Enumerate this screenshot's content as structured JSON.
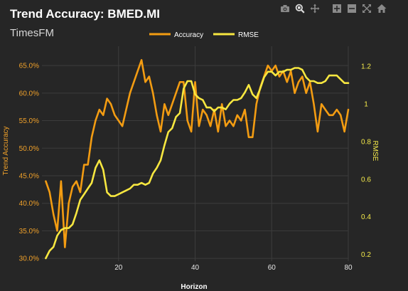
{
  "modebar": {
    "icons": [
      "camera-icon",
      "zoom-icon",
      "pan-icon",
      "zoom-in-icon",
      "zoom-out-icon",
      "autoscale-icon",
      "home-icon"
    ]
  },
  "chart_data": {
    "type": "line",
    "title": "Trend Accuracy: BMED.MI",
    "subtitle": "TimesFM",
    "xlabel": "Horizon",
    "ylabel_left": "Trend Accuracy",
    "ylabel_right": "RMSE",
    "x_ticks": [
      "20",
      "40",
      "60",
      "80"
    ],
    "y_left_ticks": [
      "30.0%",
      "35.0%",
      "40.0%",
      "45.0%",
      "50.0%",
      "55.0%",
      "60.0%",
      "65.0%"
    ],
    "y_right_ticks": [
      "0.2",
      "0.4",
      "0.6",
      "0.8",
      "1",
      "1.2"
    ],
    "xlim": [
      0,
      80
    ],
    "ylim_left": [
      0.295,
      0.685
    ],
    "ylim_right": [
      0.165,
      1.305
    ],
    "grid": true,
    "legend": {
      "placement": "top-center",
      "entries": [
        "Accuracy",
        "RMSE"
      ]
    },
    "colors": {
      "accuracy": "#f39c12",
      "rmse": "#f7e740",
      "background": "#262626",
      "grid": "#3c3c3c"
    },
    "series": [
      {
        "name": "Accuracy",
        "axis": "left",
        "x": [
          1,
          2,
          3,
          4,
          5,
          6,
          7,
          8,
          9,
          10,
          11,
          12,
          13,
          14,
          15,
          16,
          17,
          18,
          19,
          20,
          21,
          22,
          23,
          24,
          25,
          26,
          27,
          28,
          29,
          30,
          31,
          32,
          33,
          34,
          35,
          36,
          37,
          38,
          39,
          40,
          41,
          42,
          43,
          44,
          45,
          46,
          47,
          48,
          49,
          50,
          51,
          52,
          53,
          54,
          55,
          56,
          57,
          58,
          59,
          60,
          61,
          62,
          63,
          64,
          65,
          66,
          67,
          68,
          69,
          70,
          71,
          72,
          73,
          74,
          75,
          76,
          77,
          78,
          79,
          80
        ],
        "values": [
          0.44,
          0.42,
          0.38,
          0.35,
          0.44,
          0.32,
          0.4,
          0.43,
          0.44,
          0.42,
          0.47,
          0.47,
          0.52,
          0.55,
          0.57,
          0.56,
          0.59,
          0.58,
          0.56,
          0.55,
          0.54,
          0.57,
          0.6,
          0.62,
          0.64,
          0.66,
          0.62,
          0.63,
          0.6,
          0.56,
          0.53,
          0.58,
          0.56,
          0.58,
          0.6,
          0.62,
          0.62,
          0.55,
          0.53,
          0.62,
          0.54,
          0.57,
          0.56,
          0.54,
          0.57,
          0.53,
          0.58,
          0.54,
          0.55,
          0.54,
          0.56,
          0.55,
          0.57,
          0.52,
          0.52,
          0.58,
          0.61,
          0.63,
          0.65,
          0.64,
          0.65,
          0.63,
          0.64,
          0.62,
          0.64,
          0.6,
          0.62,
          0.63,
          0.6,
          0.62,
          0.58,
          0.53,
          0.58,
          0.57,
          0.56,
          0.56,
          0.57,
          0.56,
          0.53,
          0.57
        ]
      },
      {
        "name": "RMSE",
        "axis": "right",
        "x": [
          1,
          2,
          3,
          4,
          5,
          6,
          7,
          8,
          9,
          10,
          11,
          12,
          13,
          14,
          15,
          16,
          17,
          18,
          19,
          20,
          21,
          22,
          23,
          24,
          25,
          26,
          27,
          28,
          29,
          30,
          31,
          32,
          33,
          34,
          35,
          36,
          37,
          38,
          39,
          40,
          41,
          42,
          43,
          44,
          45,
          46,
          47,
          48,
          49,
          50,
          51,
          52,
          53,
          54,
          55,
          56,
          57,
          58,
          59,
          60,
          61,
          62,
          63,
          64,
          65,
          66,
          67,
          68,
          69,
          70,
          71,
          72,
          73,
          74,
          75,
          76,
          77,
          78,
          79,
          80
        ],
        "values": [
          0.18,
          0.22,
          0.24,
          0.3,
          0.33,
          0.34,
          0.34,
          0.36,
          0.42,
          0.49,
          0.52,
          0.55,
          0.58,
          0.66,
          0.7,
          0.65,
          0.53,
          0.51,
          0.51,
          0.52,
          0.53,
          0.54,
          0.55,
          0.57,
          0.57,
          0.58,
          0.57,
          0.58,
          0.63,
          0.66,
          0.7,
          0.78,
          0.85,
          0.87,
          0.93,
          0.95,
          1.08,
          1.12,
          1.12,
          1.05,
          1.03,
          1.02,
          0.98,
          0.98,
          0.96,
          0.98,
          0.98,
          0.97,
          1.0,
          1.02,
          1.02,
          1.03,
          1.06,
          1.1,
          1.05,
          1.03,
          1.08,
          1.14,
          1.17,
          1.17,
          1.15,
          1.17,
          1.17,
          1.18,
          1.18,
          1.19,
          1.19,
          1.18,
          1.14,
          1.12,
          1.12,
          1.11,
          1.11,
          1.12,
          1.15,
          1.15,
          1.15,
          1.13,
          1.11,
          1.11
        ]
      }
    ]
  }
}
